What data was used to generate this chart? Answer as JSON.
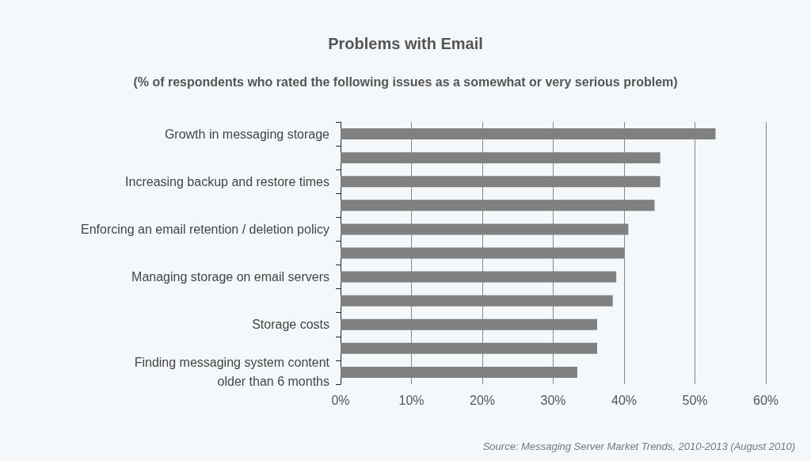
{
  "chart_data": {
    "type": "bar",
    "orientation": "horizontal",
    "title": "Problems with Email",
    "subtitle": "(% of respondents who rated the following issues as a somewhat or very serious problem)",
    "categories": [
      "Growth in messaging storage",
      null,
      "Increasing backup and restore times",
      null,
      "Enforcing an email retention / deletion policy",
      null,
      "Managing storage on email servers",
      null,
      "Storage costs",
      null,
      "Finding messaging system content\nolder than 6 months"
    ],
    "values": [
      52.9,
      45.1,
      45.1,
      44.3,
      40.6,
      40.0,
      38.9,
      38.4,
      36.2,
      36.2,
      33.4
    ],
    "color": "#808080",
    "xlim": [
      0,
      60
    ],
    "xticks": [
      {
        "value": 0,
        "label": "0%"
      },
      {
        "value": 10,
        "label": "10%"
      },
      {
        "value": 20,
        "label": "20%"
      },
      {
        "value": 30,
        "label": "30%"
      },
      {
        "value": 40,
        "label": "40%"
      },
      {
        "value": 50,
        "label": "50%"
      },
      {
        "value": 60,
        "label": "60%"
      }
    ],
    "grid": "x",
    "annotations": [
      "Source: Messaging Server Market Trends, 2010-2013 (August 2010)"
    ]
  }
}
